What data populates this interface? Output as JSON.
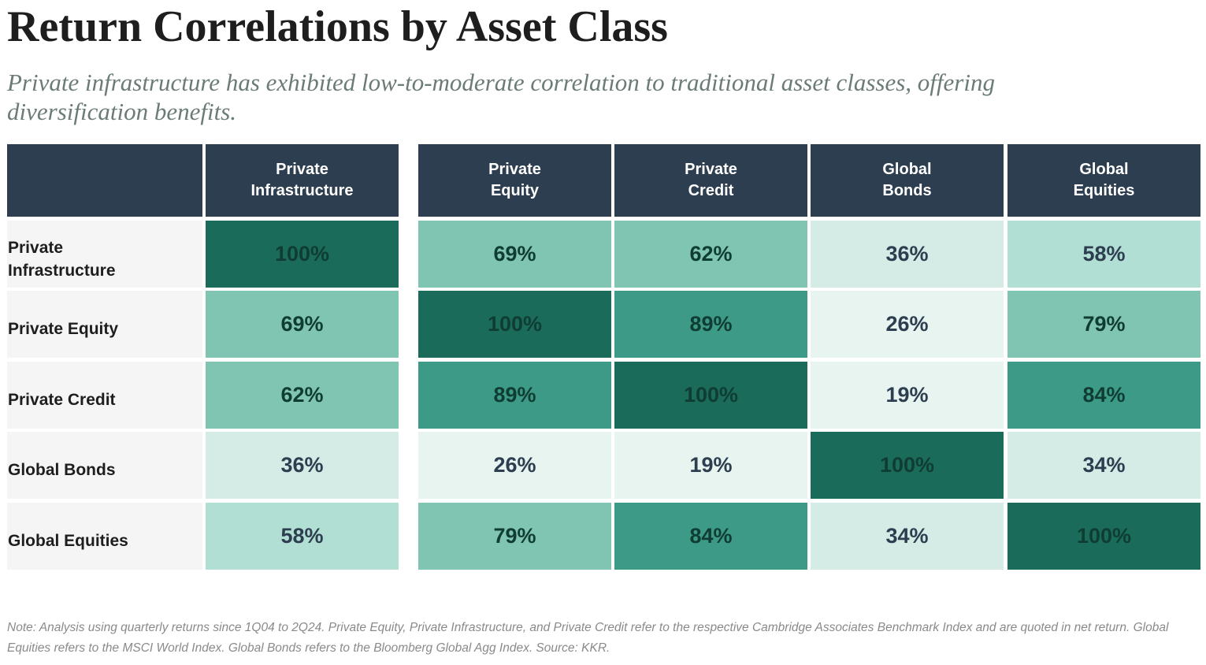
{
  "header": {
    "title": "Return Correlations by Asset Class",
    "subtitle": "Private infrastructure has exhibited low-to-moderate correlation to traditional asset classes, offering diversification benefits."
  },
  "table": {
    "columns": [
      "Private Infrastructure",
      "Private Equity",
      "Private Credit",
      "Global Bonds",
      "Global Equities"
    ],
    "rows": [
      {
        "label": "Private Infrastructure",
        "values": [
          100,
          69,
          62,
          36,
          58
        ],
        "value_labels": [
          "100%",
          "69%",
          "62%",
          "36%",
          "58%"
        ],
        "colors": [
          "#1b6b5a",
          "#80c4b2",
          "#80c4b2",
          "#d5ebe5",
          "#b2dfd3"
        ]
      },
      {
        "label": "Private Equity",
        "values": [
          69,
          100,
          89,
          26,
          79
        ],
        "value_labels": [
          "69%",
          "100%",
          "89%",
          "26%",
          "79%"
        ],
        "colors": [
          "#80c4b2",
          "#1b6b5a",
          "#3d9a87",
          "#e8f4f0",
          "#80c4b2"
        ]
      },
      {
        "label": "Private Credit",
        "values": [
          62,
          89,
          100,
          19,
          84
        ],
        "value_labels": [
          "62%",
          "89%",
          "100%",
          "19%",
          "84%"
        ],
        "colors": [
          "#80c4b2",
          "#3d9a87",
          "#1b6b5a",
          "#e8f4f0",
          "#3d9a87"
        ]
      },
      {
        "label": "Global Bonds",
        "values": [
          36,
          26,
          19,
          100,
          34
        ],
        "value_labels": [
          "36%",
          "26%",
          "19%",
          "100%",
          "34%"
        ],
        "colors": [
          "#d5ebe5",
          "#e8f4f0",
          "#e8f4f0",
          "#1b6b5a",
          "#d5ebe5"
        ]
      },
      {
        "label": "Global Equities",
        "values": [
          58,
          79,
          84,
          34,
          100
        ],
        "value_labels": [
          "58%",
          "79%",
          "84%",
          "34%",
          "100%"
        ],
        "colors": [
          "#b2dfd3",
          "#80c4b2",
          "#3d9a87",
          "#d5ebe5",
          "#1b6b5a"
        ]
      }
    ]
  },
  "note": "Note: Analysis using quarterly returns since 1Q04 to 2Q24. Private Equity, Private Infrastructure, and Private Credit refer to the respective Cambridge Associates Benchmark Index and are quoted in net return. Global Equities refers to the MSCI World Index. Global Bonds refers to the Bloomberg Global Agg Index. Source: KKR."
}
